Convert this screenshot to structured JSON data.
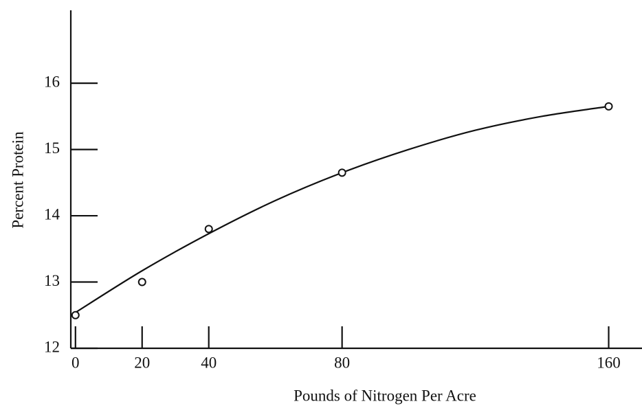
{
  "chart_data": {
    "type": "scatter",
    "xlabel": "Pounds of Nitrogen Per Acre",
    "ylabel": "Percent Protein",
    "xlim": [
      -1.4,
      170
    ],
    "ylim": [
      12,
      17.1
    ],
    "xticks": [
      0,
      20,
      40,
      80,
      160
    ],
    "yticks": [
      12,
      13,
      14,
      15,
      16
    ],
    "color": "#111111",
    "series": [
      {
        "style": "points",
        "x": [
          0,
          20,
          40,
          80,
          160
        ],
        "values": [
          12.5,
          13.0,
          13.8,
          14.65,
          15.65
        ]
      },
      {
        "style": "line",
        "x": [
          0,
          20,
          40,
          60,
          80,
          100,
          120,
          140,
          160
        ],
        "values": [
          12.54,
          13.17,
          13.73,
          14.23,
          14.65,
          15.0,
          15.29,
          15.5,
          15.65
        ]
      }
    ]
  }
}
